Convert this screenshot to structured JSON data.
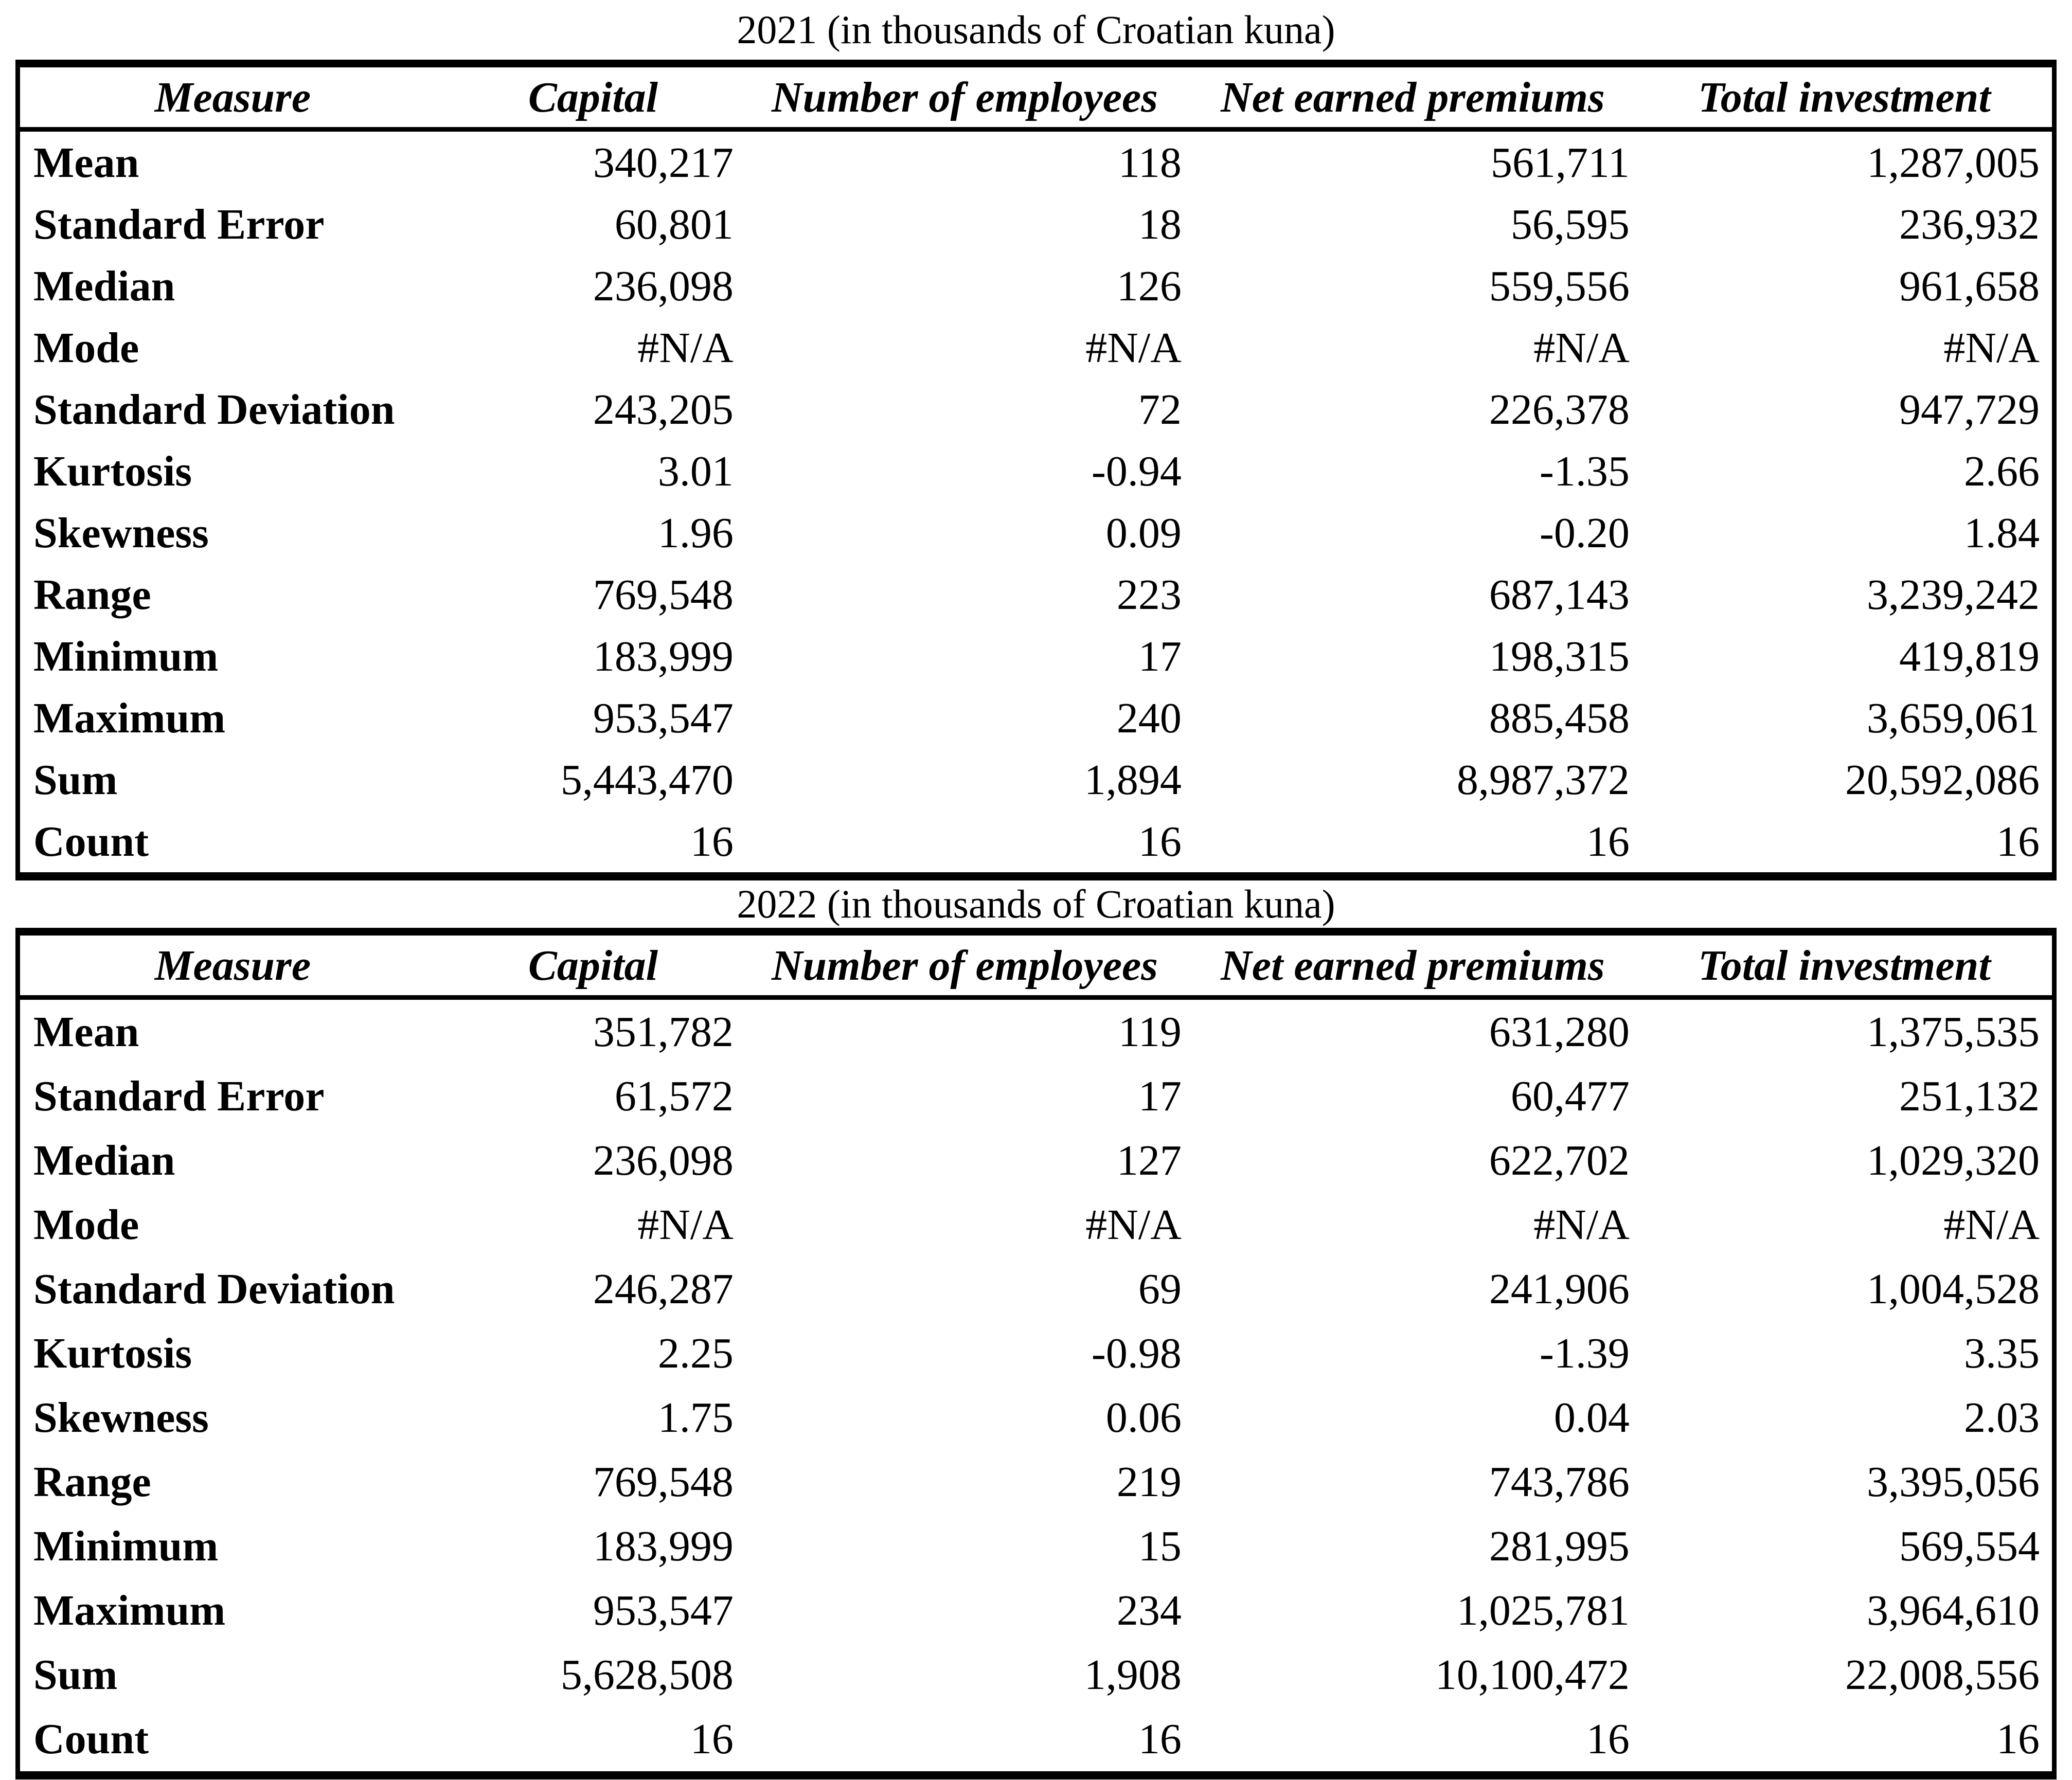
{
  "page": {
    "background_color": "#ffffff",
    "text_color": "#000000",
    "border_color": "#000000"
  },
  "tables": [
    {
      "title": "2021 (in thousands of Croatian kuna)",
      "columns": [
        "Measure",
        "Capital",
        "Number of employees",
        "Net earned premiums",
        "Total investment"
      ],
      "rows": [
        {
          "label": "Mean",
          "values": [
            "340,217",
            "118",
            "561,711",
            "1,287,005"
          ]
        },
        {
          "label": "Standard Error",
          "values": [
            "60,801",
            "18",
            "56,595",
            "236,932"
          ]
        },
        {
          "label": "Median",
          "values": [
            "236,098",
            "126",
            "559,556",
            "961,658"
          ]
        },
        {
          "label": "Mode",
          "values": [
            "#N/A",
            "#N/A",
            "#N/A",
            "#N/A"
          ]
        },
        {
          "label": "Standard Deviation",
          "values": [
            "243,205",
            "72",
            "226,378",
            "947,729"
          ]
        },
        {
          "label": "Kurtosis",
          "values": [
            "3.01",
            "-0.94",
            "-1.35",
            "2.66"
          ]
        },
        {
          "label": "Skewness",
          "values": [
            "1.96",
            "0.09",
            "-0.20",
            "1.84"
          ]
        },
        {
          "label": "Range",
          "values": [
            "769,548",
            "223",
            "687,143",
            "3,239,242"
          ]
        },
        {
          "label": "Minimum",
          "values": [
            "183,999",
            "17",
            "198,315",
            "419,819"
          ]
        },
        {
          "label": "Maximum",
          "values": [
            "953,547",
            "240",
            "885,458",
            "3,659,061"
          ]
        },
        {
          "label": "Sum",
          "values": [
            "5,443,470",
            "1,894",
            "8,987,372",
            "20,592,086"
          ]
        },
        {
          "label": "Count",
          "values": [
            "16",
            "16",
            "16",
            "16"
          ]
        }
      ]
    },
    {
      "title": "2022 (in thousands of Croatian kuna)",
      "columns": [
        "Measure",
        "Capital",
        "Number of employees",
        "Net earned premiums",
        "Total investment"
      ],
      "rows": [
        {
          "label": "Mean",
          "values": [
            "351,782",
            "119",
            "631,280",
            "1,375,535"
          ]
        },
        {
          "label": "Standard Error",
          "values": [
            "61,572",
            "17",
            "60,477",
            "251,132"
          ]
        },
        {
          "label": "Median",
          "values": [
            "236,098",
            "127",
            "622,702",
            "1,029,320"
          ]
        },
        {
          "label": "Mode",
          "values": [
            "#N/A",
            "#N/A",
            "#N/A",
            "#N/A"
          ]
        },
        {
          "label": "Standard Deviation",
          "values": [
            "246,287",
            "69",
            "241,906",
            "1,004,528"
          ]
        },
        {
          "label": "Kurtosis",
          "values": [
            "2.25",
            "-0.98",
            "-1.39",
            "3.35"
          ]
        },
        {
          "label": "Skewness",
          "values": [
            "1.75",
            "0.06",
            "0.04",
            "2.03"
          ]
        },
        {
          "label": "Range",
          "values": [
            "769,548",
            "219",
            "743,786",
            "3,395,056"
          ]
        },
        {
          "label": "Minimum",
          "values": [
            "183,999",
            "15",
            "281,995",
            "569,554"
          ]
        },
        {
          "label": "Maximum",
          "values": [
            "953,547",
            "234",
            "1,025,781",
            "3,964,610"
          ]
        },
        {
          "label": "Sum",
          "values": [
            "5,628,508",
            "1,908",
            "10,100,472",
            "22,008,556"
          ]
        },
        {
          "label": "Count",
          "values": [
            "16",
            "16",
            "16",
            "16"
          ]
        }
      ]
    }
  ]
}
